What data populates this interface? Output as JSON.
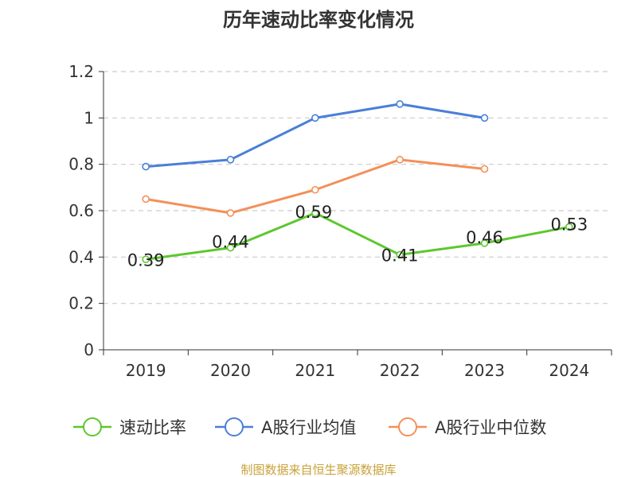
{
  "chart_data": {
    "type": "line",
    "title": "历年速动比率变化情况",
    "xlabel": "",
    "ylabel": "",
    "categories": [
      "2019",
      "2020",
      "2021",
      "2022",
      "2023",
      "2024"
    ],
    "ylim": [
      0,
      1.2
    ],
    "yticks": [
      "0",
      "0.2",
      "0.4",
      "0.6",
      "0.8",
      "1",
      "1.2"
    ],
    "grid": true,
    "legend_position": "bottom",
    "series": [
      {
        "name": "速动比率",
        "color": "#5dc72e",
        "values": [
          0.39,
          0.44,
          0.59,
          0.41,
          0.46,
          0.53
        ],
        "show_labels": true
      },
      {
        "name": "A股行业均值",
        "color": "#4a7fd8",
        "values": [
          0.79,
          0.82,
          1.0,
          1.06,
          1.0,
          null
        ],
        "show_labels": false
      },
      {
        "name": "A股行业中位数",
        "color": "#f39059",
        "values": [
          0.65,
          0.59,
          0.69,
          0.82,
          0.78,
          null
        ],
        "show_labels": false
      }
    ],
    "source": "制图数据来自恒生聚源数据库"
  }
}
